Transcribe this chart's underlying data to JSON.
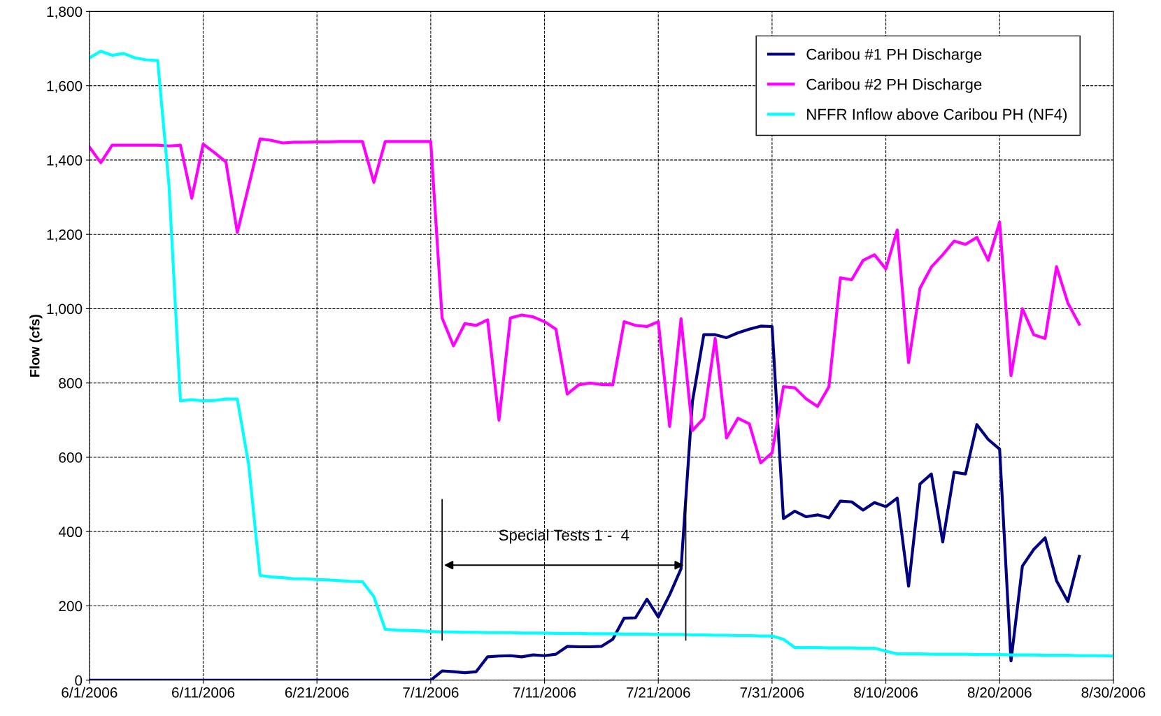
{
  "chart_data": {
    "type": "line",
    "ylabel": "Flow (cfs)",
    "x": [
      "2006-06-01",
      "2006-06-02",
      "2006-06-03",
      "2006-06-04",
      "2006-06-05",
      "2006-06-06",
      "2006-06-07",
      "2006-06-08",
      "2006-06-09",
      "2006-06-10",
      "2006-06-11",
      "2006-06-12",
      "2006-06-13",
      "2006-06-14",
      "2006-06-15",
      "2006-06-16",
      "2006-06-17",
      "2006-06-18",
      "2006-06-19",
      "2006-06-20",
      "2006-06-21",
      "2006-06-22",
      "2006-06-23",
      "2006-06-24",
      "2006-06-25",
      "2006-06-26",
      "2006-06-27",
      "2006-06-28",
      "2006-06-29",
      "2006-06-30",
      "2006-07-01",
      "2006-07-02",
      "2006-07-03",
      "2006-07-04",
      "2006-07-05",
      "2006-07-06",
      "2006-07-07",
      "2006-07-08",
      "2006-07-09",
      "2006-07-10",
      "2006-07-11",
      "2006-07-12",
      "2006-07-13",
      "2006-07-14",
      "2006-07-15",
      "2006-07-16",
      "2006-07-17",
      "2006-07-18",
      "2006-07-19",
      "2006-07-20",
      "2006-07-21",
      "2006-07-22",
      "2006-07-23",
      "2006-07-24",
      "2006-07-25",
      "2006-07-26",
      "2006-07-27",
      "2006-07-28",
      "2006-07-29",
      "2006-07-30",
      "2006-07-31",
      "2006-08-01",
      "2006-08-02",
      "2006-08-03",
      "2006-08-04",
      "2006-08-05",
      "2006-08-06",
      "2006-08-07",
      "2006-08-08",
      "2006-08-09",
      "2006-08-10",
      "2006-08-11",
      "2006-08-12",
      "2006-08-13",
      "2006-08-14",
      "2006-08-15",
      "2006-08-16",
      "2006-08-17",
      "2006-08-18",
      "2006-08-19",
      "2006-08-20",
      "2006-08-21",
      "2006-08-22",
      "2006-08-23",
      "2006-08-24",
      "2006-08-25",
      "2006-08-26",
      "2006-08-27",
      "2006-08-28",
      "2006-08-29",
      "2006-08-30"
    ],
    "series": [
      {
        "name": "Caribou #1 PH Discharge",
        "color": "#000080",
        "values": [
          0,
          0,
          0,
          0,
          0,
          0,
          0,
          0,
          0,
          0,
          0,
          0,
          0,
          0,
          0,
          0,
          0,
          0,
          0,
          0,
          0,
          0,
          0,
          0,
          0,
          0,
          0,
          0,
          0,
          0,
          0,
          25,
          23,
          20,
          23,
          63,
          65,
          66,
          63,
          68,
          66,
          70,
          91,
          90,
          90,
          91,
          110,
          167,
          168,
          218,
          170,
          230,
          300,
          750,
          930,
          930,
          922,
          935,
          945,
          953,
          952,
          435,
          455,
          440,
          445,
          437,
          482,
          480,
          458,
          478,
          467,
          490,
          253,
          528,
          555,
          372,
          560,
          555,
          688,
          648,
          622,
          52,
          307,
          352,
          383,
          268,
          212,
          333,
          null,
          null,
          null
        ]
      },
      {
        "name": "Caribou #2 PH Discharge",
        "color": "#ff00ff",
        "values": [
          1435,
          1393,
          1440,
          1440,
          1440,
          1440,
          1440,
          1438,
          1440,
          1297,
          1443,
          1420,
          1395,
          1205,
          1330,
          1457,
          1453,
          1446,
          1448,
          1448,
          1449,
          1449,
          1450,
          1450,
          1450,
          1340,
          1450,
          1450,
          1450,
          1450,
          1450,
          975,
          900,
          960,
          955,
          970,
          700,
          975,
          983,
          978,
          965,
          945,
          770,
          795,
          800,
          796,
          795,
          965,
          955,
          952,
          965,
          683,
          973,
          672,
          705,
          920,
          652,
          705,
          690,
          585,
          612,
          790,
          787,
          757,
          737,
          790,
          1083,
          1078,
          1130,
          1145,
          1107,
          1212,
          855,
          1055,
          1112,
          1145,
          1182,
          1173,
          1192,
          1130,
          1233,
          820,
          1000,
          930,
          920,
          1113,
          1015,
          958,
          null,
          null,
          null
        ]
      },
      {
        "name": "NFFR Inflow above Caribou PH (NF4)",
        "color": "#00ffff",
        "values": [
          1675,
          1693,
          1682,
          1687,
          1675,
          1670,
          1668,
          1330,
          752,
          755,
          752,
          753,
          757,
          757,
          580,
          282,
          278,
          276,
          273,
          273,
          271,
          270,
          268,
          266,
          265,
          225,
          137,
          135,
          134,
          133,
          131,
          130,
          130,
          129,
          129,
          128,
          128,
          128,
          127,
          127,
          127,
          126,
          126,
          126,
          125,
          125,
          125,
          124,
          124,
          124,
          123,
          123,
          123,
          122,
          122,
          121,
          121,
          120,
          120,
          119,
          119,
          110,
          88,
          88,
          88,
          87,
          87,
          87,
          86,
          86,
          78,
          71,
          71,
          71,
          70,
          70,
          70,
          70,
          69,
          69,
          69,
          68,
          68,
          68,
          67,
          67,
          67,
          66,
          66,
          66,
          65
        ]
      }
    ],
    "xlim": [
      "2006-06-01",
      "2006-08-30"
    ],
    "xticks": [
      {
        "value": "2006-06-01",
        "label": "6/1/2006"
      },
      {
        "value": "2006-06-11",
        "label": "6/11/2006"
      },
      {
        "value": "2006-06-21",
        "label": "6/21/2006"
      },
      {
        "value": "2006-07-01",
        "label": "7/1/2006"
      },
      {
        "value": "2006-07-11",
        "label": "7/11/2006"
      },
      {
        "value": "2006-07-21",
        "label": "7/21/2006"
      },
      {
        "value": "2006-07-31",
        "label": "7/31/2006"
      },
      {
        "value": "2006-08-10",
        "label": "8/10/2006"
      },
      {
        "value": "2006-08-20",
        "label": "8/20/2006"
      },
      {
        "value": "2006-08-30",
        "label": "8/30/2006"
      }
    ],
    "ylim": [
      0,
      1800
    ],
    "yticks": [
      0,
      200,
      400,
      600,
      800,
      {
        "value": 1000,
        "label": "1,000"
      },
      {
        "value": 1200,
        "label": "1,200"
      },
      {
        "value": 1400,
        "label": "1,400"
      },
      {
        "value": 1600,
        "label": "1,600"
      },
      {
        "value": 1800,
        "label": "1,800"
      }
    ],
    "ref_lines": [
      {
        "axis": "x",
        "value": "2006-07-02T00:00",
        "color": "#000000"
      },
      {
        "axis": "x",
        "value": "2006-07-23T10:00",
        "color": "#000000"
      }
    ],
    "annotations": [
      "Special Tests 1 -  4"
    ],
    "grid": true,
    "legend": "top right",
    "marker": "none",
    "line_style": "solid"
  }
}
